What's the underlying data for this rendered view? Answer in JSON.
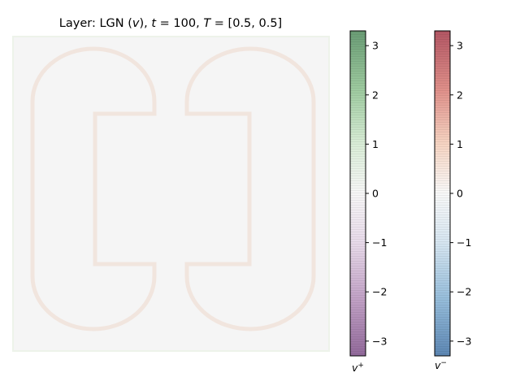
{
  "chart_data": [
    {
      "type": "heatmap",
      "title": "Layer: LGN (v), t = 100, T = [0.5, 0.5]",
      "title_parts": {
        "prefix": "Layer: LGN (",
        "var": "v",
        "mid1": "), ",
        "t_sym": "t",
        "t_val": " = 100, ",
        "T_sym": "T",
        "T_val": " = [0.5, 0.5]"
      },
      "grid": false,
      "axes_visible": false,
      "description_colors": {
        "background": "#f5f5f5",
        "outline_warm": "#f3e6df",
        "outline_green": "#e9f2e6"
      }
    },
    {
      "type": "colorbar",
      "label": "v+",
      "label_base": "v",
      "label_sup": "+",
      "colormap": "PRGn",
      "range": [
        -3.3,
        3.3
      ],
      "ticks": [
        3,
        2,
        1,
        0,
        -1,
        -2,
        -3
      ],
      "tick_labels": [
        "3",
        "2",
        "1",
        "0",
        "−1",
        "−2",
        "−3"
      ],
      "colors": {
        "top": "#5e9e6a",
        "mid": "#f5f5f5",
        "bottom": "#8e5e96"
      }
    },
    {
      "type": "colorbar",
      "label": "v−",
      "label_base": "v",
      "label_sup": "−",
      "colormap": "RdBu_r",
      "range": [
        -3.3,
        3.3
      ],
      "ticks": [
        3,
        2,
        1,
        0,
        -1,
        -2,
        -3
      ],
      "tick_labels": [
        "3",
        "2",
        "1",
        "0",
        "−1",
        "−2",
        "−3"
      ],
      "colors": {
        "top": "#b5525e",
        "mid": "#f7f7f7",
        "bottom": "#5a86b4"
      }
    }
  ]
}
